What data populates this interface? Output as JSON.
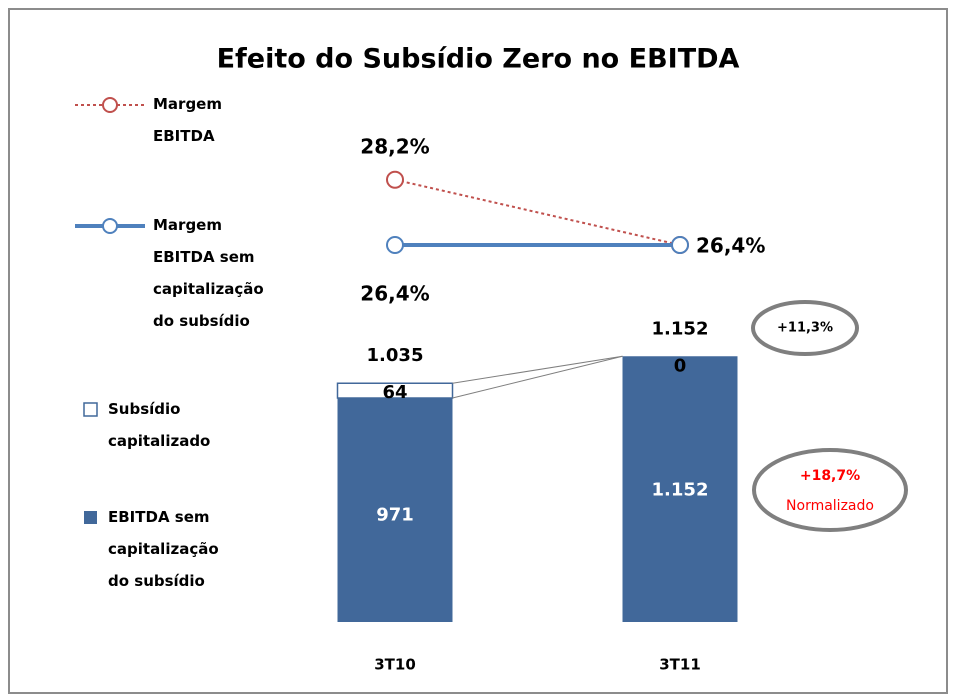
{
  "chart_data": {
    "type": "bar",
    "title": "Efeito do Subsídio Zero no EBITDA",
    "categories": [
      "3T10",
      "3T11"
    ],
    "ylim": [
      0,
      2200
    ],
    "y2lim": [
      16,
      30
    ],
    "legend": "left",
    "series": [
      {
        "name": "Margem EBITDA",
        "type": "line",
        "axis": "y2",
        "color": "#c0504d",
        "dashed": true,
        "values": [
          28.2,
          26.4
        ],
        "value_labels": [
          "28,2%",
          null
        ]
      },
      {
        "name": "Margem EBITDA sem capitalização do subsídio",
        "type": "line",
        "axis": "y2",
        "color": "#4f81bd",
        "values": [
          26.4,
          26.4
        ],
        "value_labels": [
          "26,4%",
          "26,4%"
        ]
      },
      {
        "name": "Subsídio capitalizado",
        "type": "bar",
        "color": "#ffffff",
        "values": [
          64,
          0
        ],
        "value_labels": [
          "64",
          "0"
        ]
      },
      {
        "name": "EBITDA sem capitalização do subsídio",
        "type": "bar",
        "color": "#41689a",
        "values": [
          971,
          1152
        ],
        "value_labels": [
          "971",
          "1.152"
        ]
      }
    ],
    "total_labels": [
      "1.035",
      "1.152"
    ],
    "annotations": [
      "+11,3%",
      "+18,7%",
      "Normalizado"
    ]
  }
}
